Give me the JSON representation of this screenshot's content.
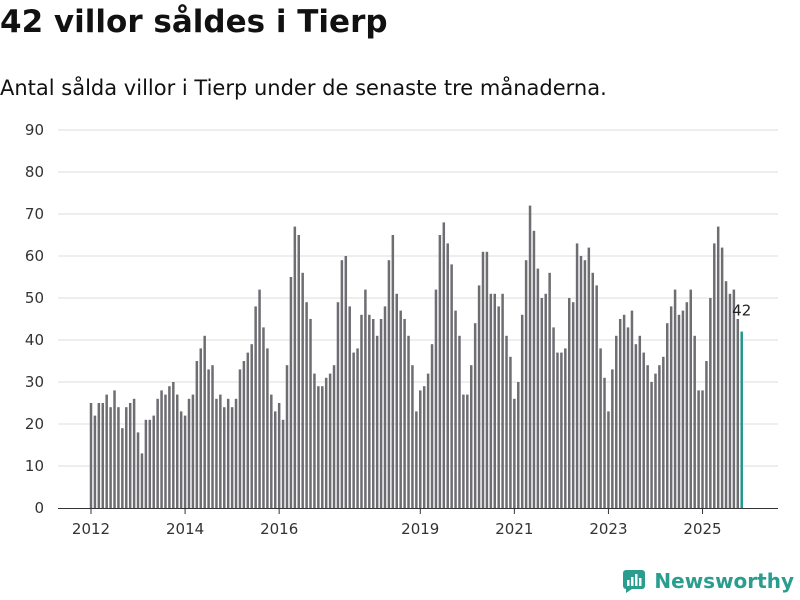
{
  "title": "42 villor såldes i Tierp",
  "subtitle": "Antal sålda villor i Tierp under de senaste tre månaderna.",
  "brand": {
    "name": "Newsworthy",
    "icon": "newsworthy-logo-icon",
    "color": "#2a9d8f"
  },
  "colors": {
    "bar": "#6e6d72",
    "highlight": "#20978c",
    "grid": "#dddddd",
    "axis": "#333333"
  },
  "chart_data": {
    "type": "bar",
    "title": "42 villor såldes i Tierp",
    "xlabel": "",
    "ylabel": "",
    "ylim": [
      0,
      90
    ],
    "yticks": [
      0,
      10,
      20,
      30,
      40,
      50,
      60,
      70,
      80,
      90
    ],
    "grid": true,
    "x_start": "2012-01",
    "frequency": "monthly",
    "x_tick_labels": [
      {
        "label": "2012",
        "index": 0
      },
      {
        "label": "2014",
        "index": 24
      },
      {
        "label": "2016",
        "index": 48
      },
      {
        "label": "2019",
        "index": 84
      },
      {
        "label": "2021",
        "index": 108
      },
      {
        "label": "2023",
        "index": 132
      },
      {
        "label": "2025",
        "index": 156
      }
    ],
    "values": [
      25,
      22,
      25,
      25,
      27,
      24,
      28,
      24,
      19,
      24,
      25,
      26,
      18,
      13,
      21,
      21,
      22,
      26,
      28,
      27,
      29,
      30,
      27,
      23,
      22,
      26,
      27,
      35,
      38,
      41,
      33,
      34,
      26,
      27,
      24,
      26,
      24,
      26,
      33,
      35,
      37,
      39,
      48,
      52,
      43,
      38,
      27,
      23,
      25,
      21,
      34,
      55,
      67,
      65,
      56,
      49,
      45,
      32,
      29,
      29,
      31,
      32,
      34,
      49,
      59,
      60,
      48,
      37,
      38,
      46,
      52,
      46,
      45,
      41,
      45,
      48,
      59,
      65,
      51,
      47,
      45,
      41,
      34,
      23,
      28,
      29,
      32,
      39,
      52,
      65,
      68,
      63,
      58,
      47,
      41,
      27,
      27,
      34,
      44,
      53,
      61,
      61,
      51,
      51,
      48,
      51,
      41,
      36,
      26,
      30,
      46,
      59,
      72,
      66,
      57,
      50,
      51,
      56,
      43,
      37,
      37,
      38,
      50,
      49,
      63,
      60,
      59,
      62,
      56,
      53,
      38,
      31,
      23,
      33,
      41,
      45,
      46,
      43,
      47,
      39,
      41,
      37,
      34,
      30,
      32,
      34,
      36,
      44,
      48,
      52,
      46,
      47,
      49,
      52,
      41,
      28,
      28,
      35,
      50,
      63,
      67,
      62,
      54,
      51,
      52,
      45,
      42
    ],
    "highlight_index": 166,
    "annotation": "42"
  }
}
